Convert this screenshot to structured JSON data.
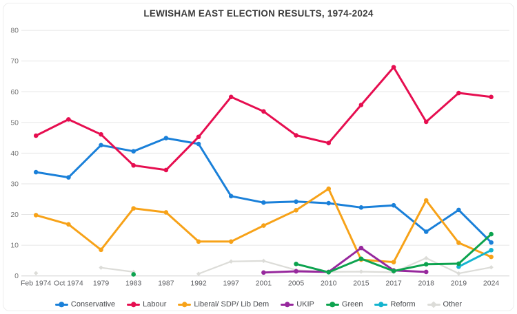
{
  "title": "LEWISHAM EAST ELECTION RESULTS, 1974-2024",
  "chart_data": {
    "type": "line",
    "title": "LEWISHAM EAST ELECTION RESULTS, 1974-2024",
    "xlabel": "",
    "ylabel": "",
    "ylim": [
      0,
      80
    ],
    "yticks": [
      0,
      10,
      20,
      30,
      40,
      50,
      60,
      70,
      80
    ],
    "grid": true,
    "legend_position": "bottom",
    "categories": [
      "Feb 1974",
      "Oct 1974",
      "1979",
      "1983",
      "1987",
      "1992",
      "1997",
      "2001",
      "2005",
      "2010",
      "2015",
      "2017",
      "2018",
      "2019",
      "2024"
    ],
    "series": [
      {
        "name": "Conservative",
        "color": "#1A80D9",
        "marker": "circle",
        "values": [
          33.8,
          32.1,
          42.6,
          40.6,
          44.9,
          43.0,
          26.0,
          23.9,
          24.2,
          23.7,
          22.3,
          23.0,
          14.4,
          21.5,
          10.9
        ]
      },
      {
        "name": "Labour",
        "color": "#E60E50",
        "marker": "circle",
        "values": [
          45.7,
          51.0,
          46.1,
          36.0,
          34.5,
          45.3,
          58.3,
          53.6,
          45.8,
          43.3,
          55.7,
          68.0,
          50.2,
          59.6,
          58.3
        ]
      },
      {
        "name": "Liberal/ SDP/ Lib Dem",
        "color": "#F7A218",
        "marker": "circle",
        "values": [
          19.8,
          16.8,
          8.5,
          22.0,
          20.7,
          11.2,
          11.2,
          16.4,
          21.4,
          28.4,
          5.3,
          4.5,
          24.6,
          10.8,
          6.2
        ]
      },
      {
        "name": "UKIP",
        "color": "#97289D",
        "marker": "circle",
        "values": [
          null,
          null,
          null,
          null,
          null,
          null,
          null,
          1.1,
          1.5,
          1.3,
          9.1,
          1.8,
          1.3,
          null,
          null
        ]
      },
      {
        "name": "Green",
        "color": "#0DA34F",
        "marker": "circle",
        "values": [
          null,
          null,
          null,
          0.5,
          null,
          null,
          null,
          null,
          3.9,
          1.2,
          5.6,
          1.6,
          3.8,
          4.0,
          13.6
        ]
      },
      {
        "name": "Reform",
        "color": "#14B4CF",
        "marker": "circle",
        "values": [
          null,
          null,
          null,
          null,
          null,
          null,
          null,
          null,
          null,
          null,
          null,
          null,
          null,
          3.0,
          8.4
        ]
      },
      {
        "name": "Other",
        "color": "#DCDCD8",
        "marker": "diamond",
        "values": [
          0.9,
          null,
          2.7,
          1.3,
          null,
          0.7,
          4.7,
          4.9,
          1.9,
          1.3,
          1.4,
          1.2,
          5.8,
          0.8,
          2.8
        ]
      }
    ]
  }
}
